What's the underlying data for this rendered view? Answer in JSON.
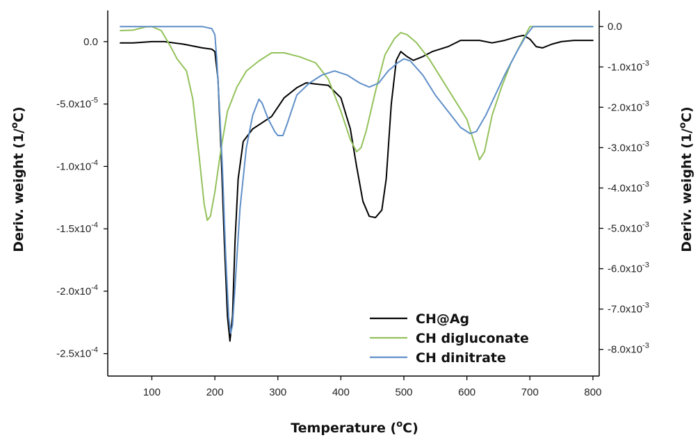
{
  "chart_data": {
    "type": "line",
    "title": "",
    "xlabel": "Temperature (",
    "xlabel_sup": "o",
    "xlabel_tail": "C)",
    "ylabel_left": "Deriv. weight (1/",
    "ylabel_left_sup": "o",
    "ylabel_left_tail": "C)",
    "ylabel_right": "Deriv. weight (1/",
    "ylabel_right_sup": "o",
    "ylabel_right_tail": "C)",
    "xlim": [
      30,
      810
    ],
    "ylim_left": [
      -0.000268,
      2.5e-05
    ],
    "ylim_right": [
      -0.00866,
      0.0004
    ],
    "x_ticks": [
      {
        "v": 100,
        "label": "100"
      },
      {
        "v": 200,
        "label": "200"
      },
      {
        "v": 300,
        "label": "300"
      },
      {
        "v": 400,
        "label": "400"
      },
      {
        "v": 500,
        "label": "500"
      },
      {
        "v": 600,
        "label": "600"
      },
      {
        "v": 700,
        "label": "700"
      },
      {
        "v": 800,
        "label": "800"
      }
    ],
    "y_left_ticks": [
      {
        "v": 0,
        "base": "0.0",
        "exp": ""
      },
      {
        "v": -5e-05,
        "base": "-5.0x10",
        "exp": "-5"
      },
      {
        "v": -0.0001,
        "base": "-1.0x10",
        "exp": "-4"
      },
      {
        "v": -0.00015,
        "base": "-1.5x10",
        "exp": "-4"
      },
      {
        "v": -0.0002,
        "base": "-2.0x10",
        "exp": "-4"
      },
      {
        "v": -0.00025,
        "base": "-2.5x10",
        "exp": "-4"
      }
    ],
    "y_right_ticks": [
      {
        "v": 0,
        "base": "0.0",
        "exp": ""
      },
      {
        "v": -0.001,
        "base": "-1.0x10",
        "exp": "-3"
      },
      {
        "v": -0.002,
        "base": "-2.0x10",
        "exp": "-3"
      },
      {
        "v": -0.003,
        "base": "-3.0x10",
        "exp": "-3"
      },
      {
        "v": -0.004,
        "base": "-4.0x10",
        "exp": "-3"
      },
      {
        "v": -0.005,
        "base": "-5.0x10",
        "exp": "-3"
      },
      {
        "v": -0.006,
        "base": "-6.0x10",
        "exp": "-3"
      },
      {
        "v": -0.007,
        "base": "-7.0x10",
        "exp": "-3"
      },
      {
        "v": -0.008,
        "base": "-8.0x10",
        "exp": "-3"
      }
    ],
    "legend_position": "bottom-right",
    "grid": false,
    "series": [
      {
        "name": "CH@Ag",
        "color": "#000000",
        "axis": "left",
        "points": [
          [
            50,
            -1e-06
          ],
          [
            70,
            -1e-06
          ],
          [
            100,
            0.0
          ],
          [
            120,
            0.0
          ],
          [
            150,
            -2e-06
          ],
          [
            180,
            -5e-06
          ],
          [
            195,
            -6e-06
          ],
          [
            200,
            -8e-06
          ],
          [
            205,
            -3e-05
          ],
          [
            210,
            -9e-05
          ],
          [
            215,
            -0.00016
          ],
          [
            220,
            -0.00022
          ],
          [
            224,
            -0.00024
          ],
          [
            228,
            -0.00022
          ],
          [
            232,
            -0.00016
          ],
          [
            237,
            -0.00011
          ],
          [
            245,
            -8e-05
          ],
          [
            260,
            -7e-05
          ],
          [
            275,
            -6.5e-05
          ],
          [
            290,
            -6e-05
          ],
          [
            310,
            -4.5e-05
          ],
          [
            330,
            -3.7e-05
          ],
          [
            345,
            -3.3e-05
          ],
          [
            360,
            -3.4e-05
          ],
          [
            380,
            -3.5e-05
          ],
          [
            400,
            -4.5e-05
          ],
          [
            415,
            -7e-05
          ],
          [
            425,
            -0.0001
          ],
          [
            435,
            -0.000128
          ],
          [
            445,
            -0.00014
          ],
          [
            455,
            -0.000141
          ],
          [
            465,
            -0.000135
          ],
          [
            472,
            -0.00011
          ],
          [
            480,
            -5e-05
          ],
          [
            488,
            -1.5e-05
          ],
          [
            495,
            -8e-06
          ],
          [
            505,
            -1.2e-05
          ],
          [
            515,
            -1.5e-05
          ],
          [
            530,
            -1.2e-05
          ],
          [
            545,
            -8e-06
          ],
          [
            570,
            -4e-06
          ],
          [
            590,
            1e-06
          ],
          [
            620,
            1e-06
          ],
          [
            640,
            -1e-06
          ],
          [
            660,
            1e-06
          ],
          [
            680,
            4e-06
          ],
          [
            690,
            5e-06
          ],
          [
            700,
            2e-06
          ],
          [
            710,
            -4e-06
          ],
          [
            720,
            -5e-06
          ],
          [
            735,
            -2e-06
          ],
          [
            750,
            0.0
          ],
          [
            770,
            1e-06
          ],
          [
            800,
            1e-06
          ]
        ]
      },
      {
        "name": "CH digluconate",
        "color": "#93c15a",
        "axis": "right",
        "points": [
          [
            50,
            -0.0001
          ],
          [
            70,
            -9e-05
          ],
          [
            90,
            -1e-05
          ],
          [
            100,
            0.0
          ],
          [
            115,
            -0.0001
          ],
          [
            130,
            -0.0005
          ],
          [
            140,
            -0.0008
          ],
          [
            155,
            -0.0011
          ],
          [
            165,
            -0.0018
          ],
          [
            175,
            -0.0032
          ],
          [
            183,
            -0.0044
          ],
          [
            188,
            -0.0048
          ],
          [
            193,
            -0.0047
          ],
          [
            200,
            -0.0041
          ],
          [
            210,
            -0.003
          ],
          [
            220,
            -0.0021
          ],
          [
            235,
            -0.0015
          ],
          [
            250,
            -0.0011
          ],
          [
            270,
            -0.00085
          ],
          [
            290,
            -0.00065
          ],
          [
            310,
            -0.00065
          ],
          [
            335,
            -0.00075
          ],
          [
            360,
            -0.0009
          ],
          [
            380,
            -0.0013
          ],
          [
            400,
            -0.0021
          ],
          [
            415,
            -0.0028
          ],
          [
            425,
            -0.0031
          ],
          [
            432,
            -0.003
          ],
          [
            440,
            -0.0026
          ],
          [
            455,
            -0.0016
          ],
          [
            470,
            -0.0007
          ],
          [
            485,
            -0.0003
          ],
          [
            495,
            -0.00015
          ],
          [
            505,
            -0.0002
          ],
          [
            520,
            -0.0004
          ],
          [
            540,
            -0.0008
          ],
          [
            560,
            -0.0013
          ],
          [
            580,
            -0.0018
          ],
          [
            600,
            -0.0023
          ],
          [
            612,
            -0.0029
          ],
          [
            620,
            -0.0033
          ],
          [
            628,
            -0.0031
          ],
          [
            640,
            -0.0022
          ],
          [
            655,
            -0.0015
          ],
          [
            670,
            -0.0009
          ],
          [
            690,
            -0.0003
          ],
          [
            700,
            0.0
          ],
          [
            720,
            0.0
          ],
          [
            800,
            0.0
          ]
        ]
      },
      {
        "name": "CH dinitrate",
        "color": "#5f8fc8",
        "axis": "right",
        "points": [
          [
            50,
            0.0
          ],
          [
            100,
            0.0
          ],
          [
            150,
            0.0
          ],
          [
            180,
            0.0
          ],
          [
            195,
            -5e-05
          ],
          [
            200,
            -0.0002
          ],
          [
            203,
            -0.0008
          ],
          [
            207,
            -0.0019
          ],
          [
            212,
            -0.0035
          ],
          [
            217,
            -0.0056
          ],
          [
            222,
            -0.0072
          ],
          [
            225,
            -0.0076
          ],
          [
            228,
            -0.0074
          ],
          [
            233,
            -0.0062
          ],
          [
            240,
            -0.0045
          ],
          [
            250,
            -0.003
          ],
          [
            260,
            -0.0022
          ],
          [
            270,
            -0.0018
          ],
          [
            275,
            -0.0019
          ],
          [
            285,
            -0.0023
          ],
          [
            295,
            -0.0026
          ],
          [
            300,
            -0.0027
          ],
          [
            308,
            -0.0027
          ],
          [
            315,
            -0.0024
          ],
          [
            330,
            -0.0017
          ],
          [
            350,
            -0.0014
          ],
          [
            370,
            -0.0012
          ],
          [
            390,
            -0.0011
          ],
          [
            410,
            -0.0012
          ],
          [
            430,
            -0.0014
          ],
          [
            445,
            -0.0015
          ],
          [
            460,
            -0.0014
          ],
          [
            475,
            -0.0011
          ],
          [
            490,
            -0.0009
          ],
          [
            500,
            -0.0008
          ],
          [
            510,
            -0.00085
          ],
          [
            530,
            -0.0012
          ],
          [
            550,
            -0.0017
          ],
          [
            570,
            -0.0021
          ],
          [
            590,
            -0.0025
          ],
          [
            605,
            -0.00265
          ],
          [
            615,
            -0.0026
          ],
          [
            630,
            -0.0022
          ],
          [
            645,
            -0.0017
          ],
          [
            660,
            -0.0012
          ],
          [
            680,
            -0.0006
          ],
          [
            695,
            -0.0002
          ],
          [
            705,
            0.0
          ],
          [
            720,
            0.0
          ],
          [
            800,
            0.0
          ]
        ]
      }
    ]
  }
}
